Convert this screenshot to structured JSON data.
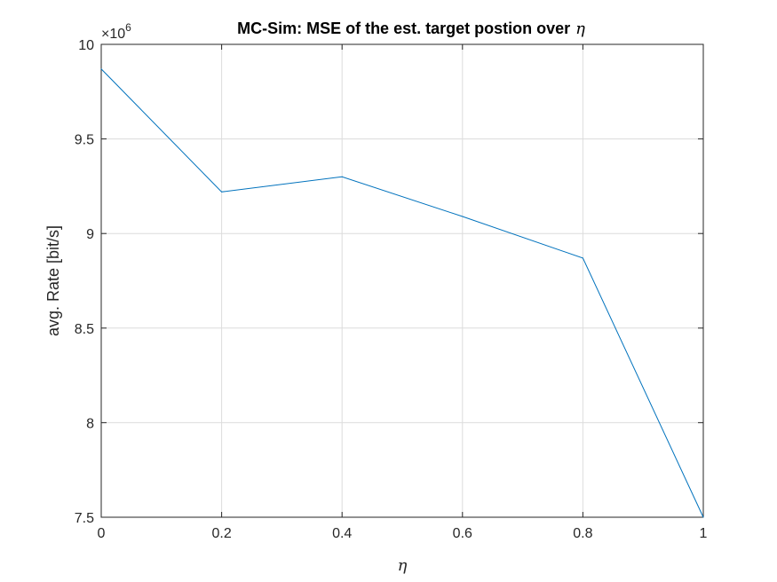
{
  "chart_data": {
    "type": "line",
    "title": "MC-Sim: MSE of the est. target postion over",
    "title_symbol": "η",
    "xlabel": "η",
    "ylabel": "avg. Rate [bit/s]",
    "y_exponent_base": "×10",
    "y_exponent_power": "6",
    "xlim": [
      0,
      1
    ],
    "ylim": [
      7.5,
      10
    ],
    "x_ticks": [
      "0",
      "0.2",
      "0.4",
      "0.6",
      "0.8",
      "1"
    ],
    "y_ticks": [
      "7.5",
      "8",
      "8.5",
      "9",
      "9.5",
      "10"
    ],
    "grid": true,
    "x": [
      0,
      0.2,
      0.4,
      0.6,
      0.8,
      1.0
    ],
    "series": [
      {
        "values": [
          9.87,
          9.22,
          9.3,
          9.09,
          8.87,
          7.5
        ],
        "color": "#0072BD"
      }
    ]
  }
}
